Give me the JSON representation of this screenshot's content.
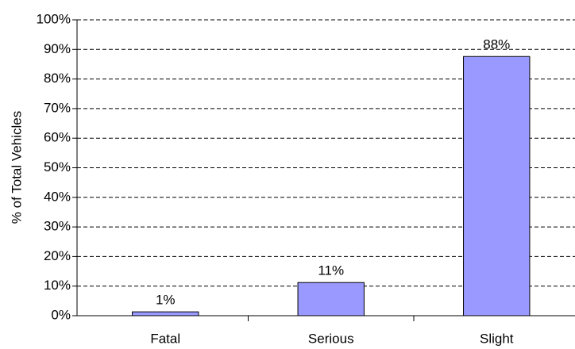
{
  "chart_data": {
    "type": "bar",
    "y_axis_label": "% of Total Vehicles",
    "categories": [
      "Fatal",
      "Serious",
      "Slight"
    ],
    "values": [
      1.3,
      11.2,
      87.6
    ],
    "value_labels": [
      "1%",
      "11%",
      "88%"
    ],
    "color": "#9999ff",
    "ylim": [
      0,
      100
    ],
    "yticks": [
      {
        "value": 0,
        "label": "0%"
      },
      {
        "value": 10,
        "label": "10%"
      },
      {
        "value": 20,
        "label": "20%"
      },
      {
        "value": 30,
        "label": "30%"
      },
      {
        "value": 40,
        "label": "40%"
      },
      {
        "value": 50,
        "label": "50%"
      },
      {
        "value": 60,
        "label": "60%"
      },
      {
        "value": 70,
        "label": "70%"
      },
      {
        "value": 80,
        "label": "80%"
      },
      {
        "value": 90,
        "label": "90%"
      },
      {
        "value": 100,
        "label": "100%"
      }
    ],
    "grid": true
  }
}
